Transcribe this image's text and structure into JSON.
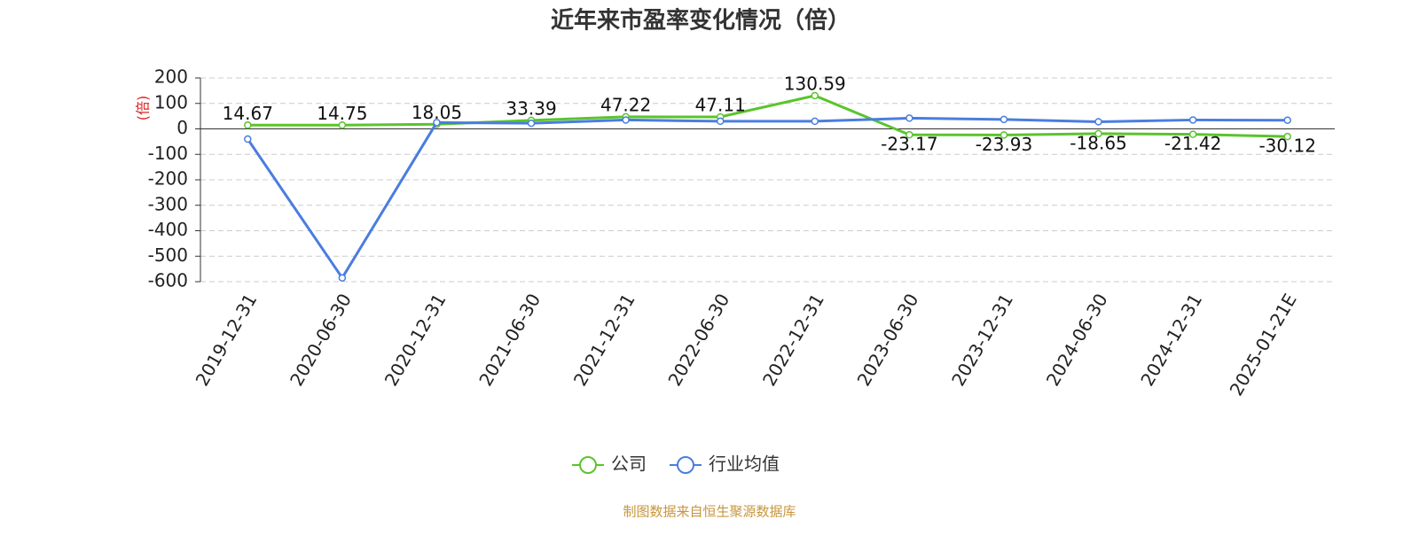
{
  "chart_data": {
    "type": "line",
    "title": "近年来市盈率变化情况（倍）",
    "y_label": "(倍)",
    "categories": [
      "2019-12-31",
      "2020-06-30",
      "2020-12-31",
      "2021-06-30",
      "2021-12-31",
      "2022-06-30",
      "2022-12-31",
      "2023-06-30",
      "2023-12-31",
      "2024-06-30",
      "2024-12-31",
      "2025-01-21E"
    ],
    "series": [
      {
        "name": "公司",
        "color": "#5ac42c",
        "values": [
          14.67,
          14.75,
          18.05,
          33.39,
          47.22,
          47.11,
          130.59,
          -23.17,
          -23.93,
          -18.65,
          -21.42,
          -30.12
        ]
      },
      {
        "name": "行业均值",
        "color": "#4a7ddf",
        "values": [
          -40,
          -585,
          25,
          22,
          35,
          30,
          30,
          42,
          37,
          28,
          35,
          34
        ]
      }
    ],
    "ylim": [
      -600,
      200
    ],
    "yticks": [
      -600,
      -500,
      -400,
      -300,
      -200,
      -100,
      0,
      100,
      200
    ],
    "grid": true,
    "source": "制图数据来自恒生聚源数据库"
  }
}
